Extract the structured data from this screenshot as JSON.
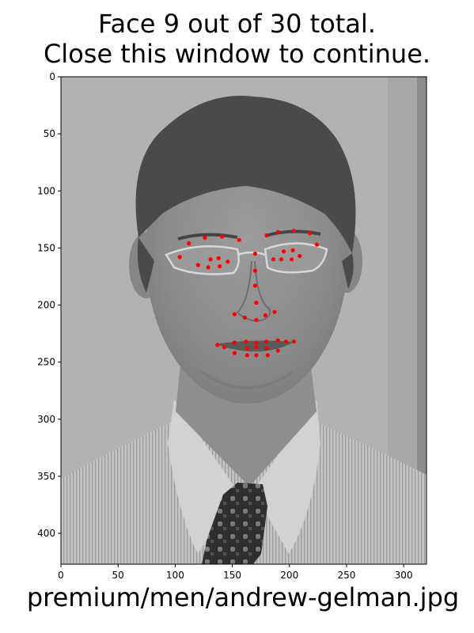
{
  "title_line1": "Face 9 out of 30 total.",
  "title_line2": "Close this window to continue.",
  "xlabel": "premium/men/andrew-gelman.jpg",
  "chart_data": {
    "type": "scatter",
    "title": "Face 9 out of 30 total.\nClose this window to continue.",
    "xlabel": "premium/men/andrew-gelman.jpg",
    "ylabel": "",
    "xlim": [
      0,
      320
    ],
    "ylim": [
      427,
      0
    ],
    "y_inverted": true,
    "background": "grayscale photo of a man's face with glasses and a tie",
    "marker_color": "#ff0000",
    "x_ticks": [
      0,
      50,
      100,
      150,
      200,
      250,
      300
    ],
    "y_ticks": [
      0,
      50,
      100,
      150,
      200,
      250,
      300,
      350,
      400
    ],
    "series": [
      {
        "name": "",
        "points": [
          [
            112,
            146
          ],
          [
            126,
            141
          ],
          [
            141,
            140
          ],
          [
            156,
            143
          ],
          [
            180,
            139
          ],
          [
            190,
            136
          ],
          [
            204,
            135
          ],
          [
            218,
            137
          ],
          [
            104,
            158
          ],
          [
            120,
            165
          ],
          [
            129,
            167
          ],
          [
            139,
            166
          ],
          [
            146,
            162
          ],
          [
            131,
            160
          ],
          [
            138,
            159
          ],
          [
            170,
            155
          ],
          [
            170,
            170
          ],
          [
            170,
            183
          ],
          [
            171,
            198
          ],
          [
            152,
            208
          ],
          [
            161,
            211
          ],
          [
            171,
            213
          ],
          [
            179,
            209
          ],
          [
            187,
            206
          ],
          [
            186,
            160
          ],
          [
            193,
            160
          ],
          [
            202,
            160
          ],
          [
            209,
            157
          ],
          [
            224,
            147
          ],
          [
            195,
            153
          ],
          [
            203,
            152
          ],
          [
            137,
            235
          ],
          [
            143,
            237
          ],
          [
            152,
            233
          ],
          [
            162,
            232
          ],
          [
            171,
            233
          ],
          [
            180,
            232
          ],
          [
            190,
            231
          ],
          [
            197,
            232
          ],
          [
            204,
            232
          ],
          [
            152,
            242
          ],
          [
            163,
            244
          ],
          [
            171,
            244
          ],
          [
            181,
            244
          ],
          [
            190,
            240
          ],
          [
            163,
            238
          ],
          [
            171,
            237
          ],
          [
            180,
            238
          ]
        ]
      }
    ]
  }
}
